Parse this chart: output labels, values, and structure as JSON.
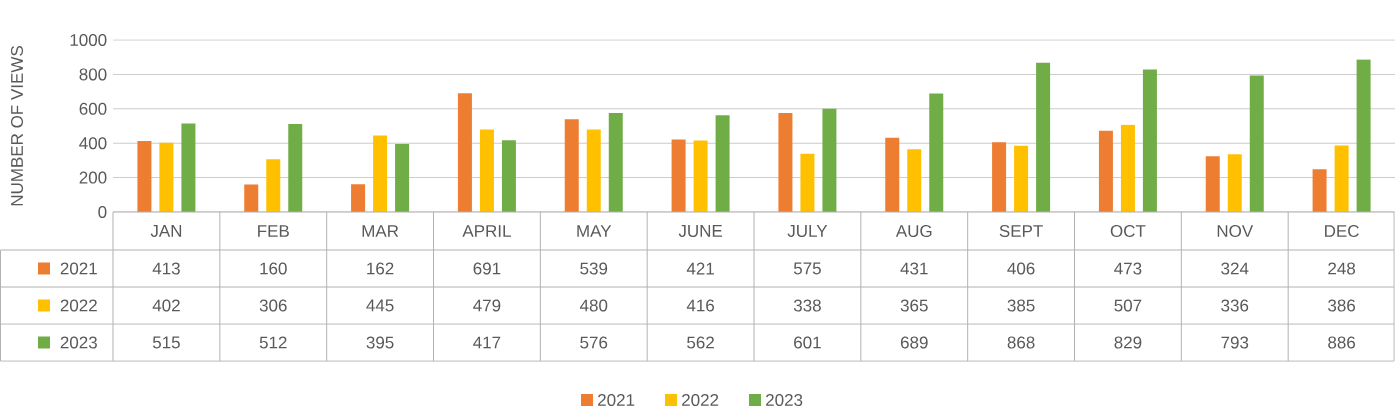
{
  "chart_data": {
    "type": "bar",
    "ylabel": "NUMBER OF VIEWS",
    "categories": [
      "JAN",
      "FEB",
      "MAR",
      "APRIL",
      "MAY",
      "JUNE",
      "JULY",
      "AUG",
      "SEPT",
      "OCT",
      "NOV",
      "DEC"
    ],
    "series": [
      {
        "name": "2021",
        "color": "#ed7d31",
        "values": [
          413,
          160,
          162,
          691,
          539,
          421,
          575,
          431,
          406,
          473,
          324,
          248
        ]
      },
      {
        "name": "2022",
        "color": "#ffc000",
        "values": [
          402,
          306,
          445,
          479,
          480,
          416,
          338,
          365,
          385,
          507,
          336,
          386
        ]
      },
      {
        "name": "2023",
        "color": "#70ad47",
        "values": [
          515,
          512,
          395,
          417,
          576,
          562,
          601,
          689,
          868,
          829,
          793,
          886
        ]
      }
    ],
    "ylim": [
      0,
      1000
    ],
    "yticks": [
      0,
      200,
      400,
      600,
      800,
      1000
    ],
    "grid": "y",
    "legend": "bottom",
    "data_labels": true
  }
}
